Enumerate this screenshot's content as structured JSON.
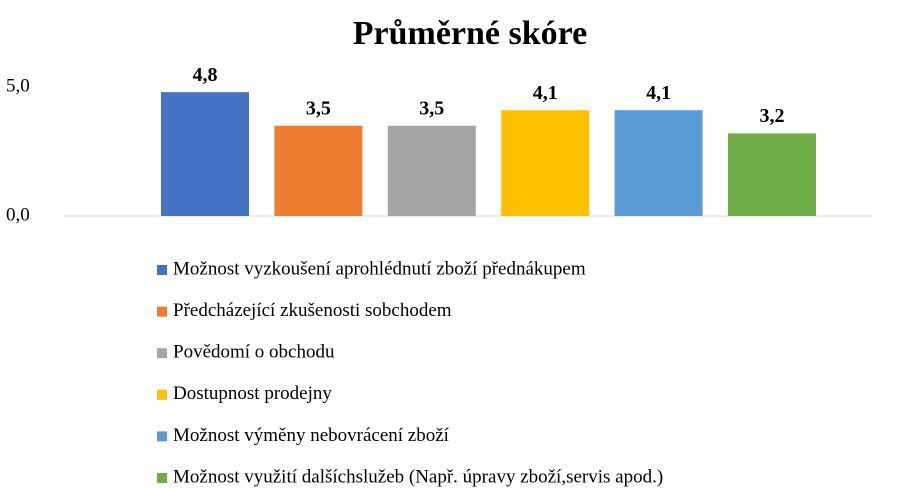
{
  "chart_data": {
    "type": "bar",
    "title": "Průměrné skóre",
    "ylim": [
      0,
      5
    ],
    "yticks": [
      {
        "value": 0,
        "label": "0,0"
      },
      {
        "value": 5,
        "label": "5,0"
      }
    ],
    "grid": false,
    "legend": "bottom",
    "series": [
      {
        "name": "Možnost vyzkoušení aprohlédnutí zboží přednákupem",
        "color": "#4472c4",
        "values": [
          4.8
        ],
        "value_labels": [
          "4,8"
        ]
      },
      {
        "name": "Předcházející zkušenosti sobchodem",
        "color": "#ed7d31",
        "values": [
          3.5
        ],
        "value_labels": [
          "3,5"
        ]
      },
      {
        "name": "Povědomí o obchodu",
        "color": "#a5a5a5",
        "values": [
          3.5
        ],
        "value_labels": [
          "3,5"
        ]
      },
      {
        "name": "Dostupnost prodejny",
        "color": "#ffc000",
        "values": [
          4.1
        ],
        "value_labels": [
          "4,1"
        ]
      },
      {
        "name": "Možnost výměny nebovrácení zboží",
        "color": "#5b9bd5",
        "values": [
          4.1
        ],
        "value_labels": [
          "4,1"
        ]
      },
      {
        "name": "Možnost využití dalšíchslužeb (Např. úpravy zboží,servis apod.)",
        "color": "#70ad47",
        "values": [
          3.2
        ],
        "value_labels": [
          "3,2"
        ]
      }
    ]
  }
}
